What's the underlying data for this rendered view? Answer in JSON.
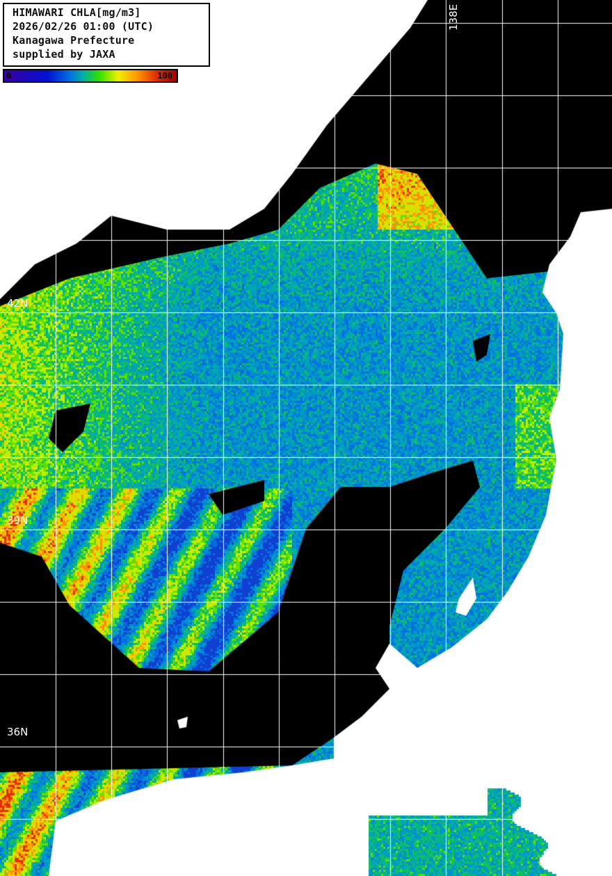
{
  "title_box": {
    "lines": [
      "HIMAWARI CHLA[mg/m3]",
      "2026/02/26 01:00 (UTC)",
      "Kanagawa Prefecture",
      "supplied by JAXA"
    ]
  },
  "colorbar": {
    "min_label": "0",
    "max_label": "100",
    "colors": [
      "#3a00a0",
      "#0010d0",
      "#0070e0",
      "#00b0a0",
      "#30e000",
      "#f0f000",
      "#ff9000",
      "#e03000",
      "#a00000"
    ]
  },
  "grid_labels": {
    "lat_42": "42N",
    "lat_39": "39N",
    "lat_36": "36N",
    "lon_138": "138E"
  },
  "colors": {
    "land": "#ffffff",
    "cloud_no_data": "#000000",
    "grid": "#ffffff"
  }
}
